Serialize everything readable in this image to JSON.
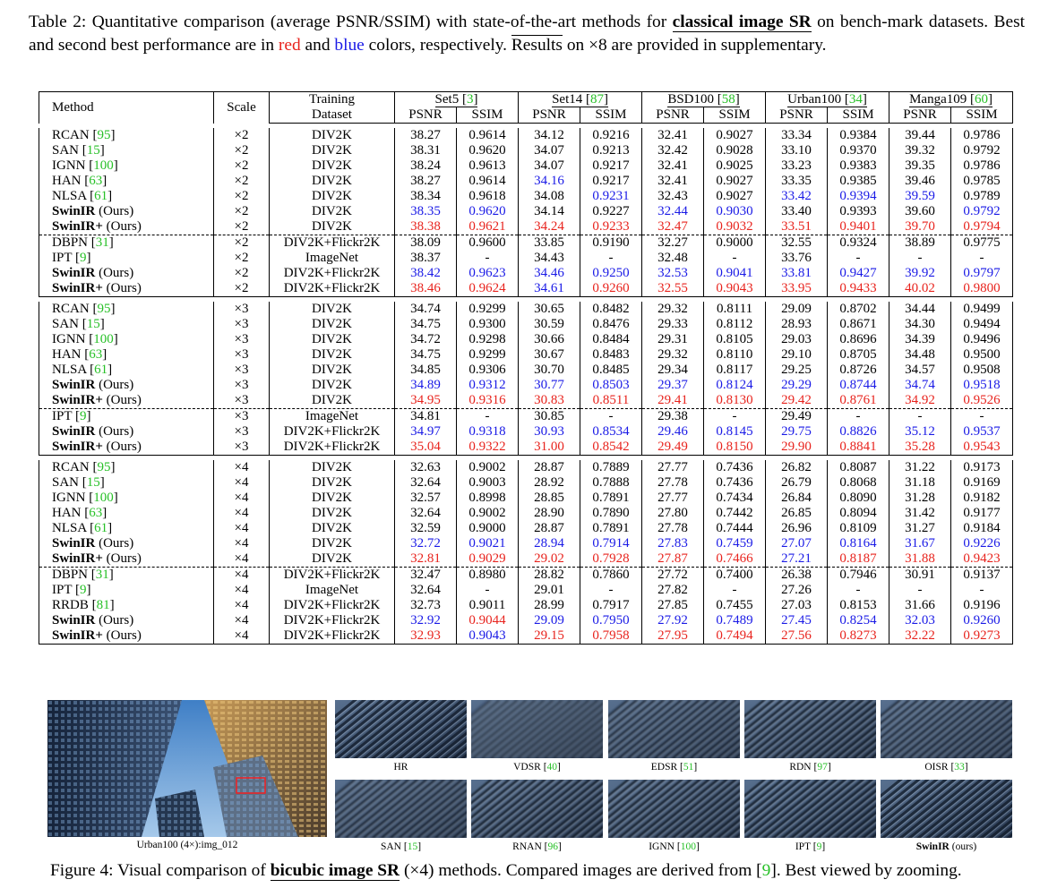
{
  "caption": {
    "prefix": "Table 2: Quantitative comparison (average PSNR/SSIM) with state-of-the-art methods for",
    "bold": "classical image SR",
    "middle": "on bench-mark datasets. Best and second best performance are in",
    "red_word": "red",
    "and": "and",
    "blue_word": "blue",
    "after_blue": "colors, respectively.",
    "results": "Results",
    "suffix": "on ×8 are provided in supplementary."
  },
  "table": {
    "headers": {
      "method": "Method",
      "scale": "Scale",
      "training_line1": "Training",
      "training_line2": "Dataset",
      "datasets": [
        {
          "name": "Set5",
          "ref": "3"
        },
        {
          "name": "Set14",
          "ref": "87"
        },
        {
          "name": "BSD100",
          "ref": "58"
        },
        {
          "name": "Urban100",
          "ref": "34"
        },
        {
          "name": "Manga109",
          "ref": "60"
        }
      ],
      "psnr": "PSNR",
      "ssim": "SSIM"
    },
    "groups": [
      {
        "rows": [
          {
            "method": "RCAN",
            "ref": "95",
            "scale": "×2",
            "dataset": "DIV2K",
            "values": [
              "38.27",
              "0.9614",
              "34.12",
              "0.9216",
              "32.41",
              "0.9027",
              "33.34",
              "0.9384",
              "39.44",
              "0.9786"
            ],
            "colors": "0000000000"
          },
          {
            "method": "SAN",
            "ref": "15",
            "scale": "×2",
            "dataset": "DIV2K",
            "values": [
              "38.31",
              "0.9620",
              "34.07",
              "0.9213",
              "32.42",
              "0.9028",
              "33.10",
              "0.9370",
              "39.32",
              "0.9792"
            ],
            "colors": "0000000000"
          },
          {
            "method": "IGNN",
            "ref": "100",
            "scale": "×2",
            "dataset": "DIV2K",
            "values": [
              "38.24",
              "0.9613",
              "34.07",
              "0.9217",
              "32.41",
              "0.9025",
              "33.23",
              "0.9383",
              "39.35",
              "0.9786"
            ],
            "colors": "0000000000"
          },
          {
            "method": "HAN",
            "ref": "63",
            "scale": "×2",
            "dataset": "DIV2K",
            "values": [
              "38.27",
              "0.9614",
              "34.16",
              "0.9217",
              "32.41",
              "0.9027",
              "33.35",
              "0.9385",
              "39.46",
              "0.9785"
            ],
            "colors": "0020000000"
          },
          {
            "method": "NLSA",
            "ref": "61",
            "scale": "×2",
            "dataset": "DIV2K",
            "values": [
              "38.34",
              "0.9618",
              "34.08",
              "0.9231",
              "32.43",
              "0.9027",
              "33.42",
              "0.9394",
              "39.59",
              "0.9789"
            ],
            "colors": "0002002220"
          },
          {
            "method": "SwinIR",
            "bold": true,
            "note": "(Ours)",
            "scale": "×2",
            "dataset": "DIV2K",
            "values": [
              "38.35",
              "0.9620",
              "34.14",
              "0.9227",
              "32.44",
              "0.9030",
              "33.40",
              "0.9393",
              "39.60",
              "0.9792"
            ],
            "colors": "2200220002"
          },
          {
            "method": "SwinIR+",
            "bold": true,
            "note": "(Ours)",
            "scale": "×2",
            "dataset": "DIV2K",
            "values": [
              "38.38",
              "0.9621",
              "34.24",
              "0.9233",
              "32.47",
              "0.9032",
              "33.51",
              "0.9401",
              "39.70",
              "0.9794"
            ],
            "colors": "1111111111",
            "dash": true
          },
          {
            "method": "DBPN",
            "ref": "31",
            "scale": "×2",
            "dataset": "DIV2K+Flickr2K",
            "values": [
              "38.09",
              "0.9600",
              "33.85",
              "0.9190",
              "32.27",
              "0.9000",
              "32.55",
              "0.9324",
              "38.89",
              "0.9775"
            ],
            "colors": "0000000000"
          },
          {
            "method": "IPT",
            "ref": "9",
            "scale": "×2",
            "dataset": "ImageNet",
            "values": [
              "38.37",
              "-",
              "34.43",
              "-",
              "32.48",
              "-",
              "33.76",
              "-",
              "-",
              "-"
            ],
            "colors": "0000000000"
          },
          {
            "method": "SwinIR",
            "bold": true,
            "note": "(Ours)",
            "scale": "×2",
            "dataset": "DIV2K+Flickr2K",
            "values": [
              "38.42",
              "0.9623",
              "34.46",
              "0.9250",
              "32.53",
              "0.9041",
              "33.81",
              "0.9427",
              "39.92",
              "0.9797"
            ],
            "colors": "2222222222"
          },
          {
            "method": "SwinIR+",
            "bold": true,
            "note": "(Ours)",
            "scale": "×2",
            "dataset": "DIV2K+Flickr2K",
            "values": [
              "38.46",
              "0.9624",
              "34.61",
              "0.9260",
              "32.55",
              "0.9043",
              "33.95",
              "0.9433",
              "40.02",
              "0.9800"
            ],
            "colors": "1121111111"
          }
        ]
      },
      {
        "rows": [
          {
            "method": "RCAN",
            "ref": "95",
            "scale": "×3",
            "dataset": "DIV2K",
            "values": [
              "34.74",
              "0.9299",
              "30.65",
              "0.8482",
              "29.32",
              "0.8111",
              "29.09",
              "0.8702",
              "34.44",
              "0.9499"
            ],
            "colors": "0000000000"
          },
          {
            "method": "SAN",
            "ref": "15",
            "scale": "×3",
            "dataset": "DIV2K",
            "values": [
              "34.75",
              "0.9300",
              "30.59",
              "0.8476",
              "29.33",
              "0.8112",
              "28.93",
              "0.8671",
              "34.30",
              "0.9494"
            ],
            "colors": "0000000000"
          },
          {
            "method": "IGNN",
            "ref": "100",
            "scale": "×3",
            "dataset": "DIV2K",
            "values": [
              "34.72",
              "0.9298",
              "30.66",
              "0.8484",
              "29.31",
              "0.8105",
              "29.03",
              "0.8696",
              "34.39",
              "0.9496"
            ],
            "colors": "0000000000"
          },
          {
            "method": "HAN",
            "ref": "63",
            "scale": "×3",
            "dataset": "DIV2K",
            "values": [
              "34.75",
              "0.9299",
              "30.67",
              "0.8483",
              "29.32",
              "0.8110",
              "29.10",
              "0.8705",
              "34.48",
              "0.9500"
            ],
            "colors": "0000000000"
          },
          {
            "method": "NLSA",
            "ref": "61",
            "scale": "×3",
            "dataset": "DIV2K",
            "values": [
              "34.85",
              "0.9306",
              "30.70",
              "0.8485",
              "29.34",
              "0.8117",
              "29.25",
              "0.8726",
              "34.57",
              "0.9508"
            ],
            "colors": "0000000000"
          },
          {
            "method": "SwinIR",
            "bold": true,
            "note": "(Ours)",
            "scale": "×3",
            "dataset": "DIV2K",
            "values": [
              "34.89",
              "0.9312",
              "30.77",
              "0.8503",
              "29.37",
              "0.8124",
              "29.29",
              "0.8744",
              "34.74",
              "0.9518"
            ],
            "colors": "2222222222"
          },
          {
            "method": "SwinIR+",
            "bold": true,
            "note": "(Ours)",
            "scale": "×3",
            "dataset": "DIV2K",
            "values": [
              "34.95",
              "0.9316",
              "30.83",
              "0.8511",
              "29.41",
              "0.8130",
              "29.42",
              "0.8761",
              "34.92",
              "0.9526"
            ],
            "colors": "1111111111",
            "dash": true
          },
          {
            "method": "IPT",
            "ref": "9",
            "scale": "×3",
            "dataset": "ImageNet",
            "values": [
              "34.81",
              "-",
              "30.85",
              "-",
              "29.38",
              "-",
              "29.49",
              "-",
              "-",
              "-"
            ],
            "colors": "0000000000"
          },
          {
            "method": "SwinIR",
            "bold": true,
            "note": "(Ours)",
            "scale": "×3",
            "dataset": "DIV2K+Flickr2K",
            "values": [
              "34.97",
              "0.9318",
              "30.93",
              "0.8534",
              "29.46",
              "0.8145",
              "29.75",
              "0.8826",
              "35.12",
              "0.9537"
            ],
            "colors": "2222222222"
          },
          {
            "method": "SwinIR+",
            "bold": true,
            "note": "(Ours)",
            "scale": "×3",
            "dataset": "DIV2K+Flickr2K",
            "values": [
              "35.04",
              "0.9322",
              "31.00",
              "0.8542",
              "29.49",
              "0.8150",
              "29.90",
              "0.8841",
              "35.28",
              "0.9543"
            ],
            "colors": "1111111111"
          }
        ]
      },
      {
        "rows": [
          {
            "method": "RCAN",
            "ref": "95",
            "scale": "×4",
            "dataset": "DIV2K",
            "values": [
              "32.63",
              "0.9002",
              "28.87",
              "0.7889",
              "27.77",
              "0.7436",
              "26.82",
              "0.8087",
              "31.22",
              "0.9173"
            ],
            "colors": "0000000000"
          },
          {
            "method": "SAN",
            "ref": "15",
            "scale": "×4",
            "dataset": "DIV2K",
            "values": [
              "32.64",
              "0.9003",
              "28.92",
              "0.7888",
              "27.78",
              "0.7436",
              "26.79",
              "0.8068",
              "31.18",
              "0.9169"
            ],
            "colors": "0000000000"
          },
          {
            "method": "IGNN",
            "ref": "100",
            "scale": "×4",
            "dataset": "DIV2K",
            "values": [
              "32.57",
              "0.8998",
              "28.85",
              "0.7891",
              "27.77",
              "0.7434",
              "26.84",
              "0.8090",
              "31.28",
              "0.9182"
            ],
            "colors": "0000000000"
          },
          {
            "method": "HAN",
            "ref": "63",
            "scale": "×4",
            "dataset": "DIV2K",
            "values": [
              "32.64",
              "0.9002",
              "28.90",
              "0.7890",
              "27.80",
              "0.7442",
              "26.85",
              "0.8094",
              "31.42",
              "0.9177"
            ],
            "colors": "0000000000"
          },
          {
            "method": "NLSA",
            "ref": "61",
            "scale": "×4",
            "dataset": "DIV2K",
            "values": [
              "32.59",
              "0.9000",
              "28.87",
              "0.7891",
              "27.78",
              "0.7444",
              "26.96",
              "0.8109",
              "31.27",
              "0.9184"
            ],
            "colors": "0000000000"
          },
          {
            "method": "SwinIR",
            "bold": true,
            "note": "(Ours)",
            "scale": "×4",
            "dataset": "DIV2K",
            "values": [
              "32.72",
              "0.9021",
              "28.94",
              "0.7914",
              "27.83",
              "0.7459",
              "27.07",
              "0.8164",
              "31.67",
              "0.9226"
            ],
            "colors": "2222222222"
          },
          {
            "method": "SwinIR+",
            "bold": true,
            "note": "(Ours)",
            "scale": "×4",
            "dataset": "DIV2K",
            "values": [
              "32.81",
              "0.9029",
              "29.02",
              "0.7928",
              "27.87",
              "0.7466",
              "27.21",
              "0.8187",
              "31.88",
              "0.9423"
            ],
            "colors": "1111112111",
            "dash": true
          },
          {
            "method": "DBPN",
            "ref": "31",
            "scale": "×4",
            "dataset": "DIV2K+Flickr2K",
            "values": [
              "32.47",
              "0.8980",
              "28.82",
              "0.7860",
              "27.72",
              "0.7400",
              "26.38",
              "0.7946",
              "30.91",
              "0.9137"
            ],
            "colors": "0000000000"
          },
          {
            "method": "IPT",
            "ref": "9",
            "scale": "×4",
            "dataset": "ImageNet",
            "values": [
              "32.64",
              "-",
              "29.01",
              "-",
              "27.82",
              "-",
              "27.26",
              "-",
              "-",
              "-"
            ],
            "colors": "0000000000"
          },
          {
            "method": "RRDB",
            "ref": "81",
            "scale": "×4",
            "dataset": "DIV2K+Flickr2K",
            "values": [
              "32.73",
              "0.9011",
              "28.99",
              "0.7917",
              "27.85",
              "0.7455",
              "27.03",
              "0.8153",
              "31.66",
              "0.9196"
            ],
            "colors": "0000000000"
          },
          {
            "method": "SwinIR",
            "bold": true,
            "note": "(Ours)",
            "scale": "×4",
            "dataset": "DIV2K+Flickr2K",
            "values": [
              "32.92",
              "0.9044",
              "29.09",
              "0.7950",
              "27.92",
              "0.7489",
              "27.45",
              "0.8254",
              "32.03",
              "0.9260"
            ],
            "colors": "2122222222"
          },
          {
            "method": "SwinIR+",
            "bold": true,
            "note": "(Ours)",
            "scale": "×4",
            "dataset": "DIV2K+Flickr2K",
            "values": [
              "32.93",
              "0.9043",
              "29.15",
              "0.7958",
              "27.95",
              "0.7494",
              "27.56",
              "0.8273",
              "32.22",
              "0.9273"
            ],
            "colors": "1211111111"
          }
        ]
      }
    ]
  },
  "figure": {
    "main_caption": "Urban100 (4×):img_012",
    "patches_top": [
      {
        "label": "HR",
        "ref": ""
      },
      {
        "label": "VDSR",
        "ref": "40"
      },
      {
        "label": "EDSR",
        "ref": "51"
      },
      {
        "label": "RDN",
        "ref": "97"
      },
      {
        "label": "OISR",
        "ref": "33"
      }
    ],
    "patches_bottom": [
      {
        "label": "SAN",
        "ref": "15"
      },
      {
        "label": "RNAN",
        "ref": "96"
      },
      {
        "label": "IGNN",
        "ref": "100"
      },
      {
        "label": "IPT",
        "ref": "9"
      },
      {
        "label": "SwinIR",
        "ref": "",
        "bold": true,
        "note": "(ours)"
      }
    ],
    "caption": {
      "prefix": "Figure 4: Visual comparison of",
      "bold": "bicubic image SR",
      "middle": "(×4) methods. Compared images are derived from",
      "ref": "9",
      "suffix": ". Best viewed by zooming."
    }
  },
  "colors": {
    "red": "#e8231d",
    "blue": "#1a1ae6",
    "green": "#27c027"
  }
}
